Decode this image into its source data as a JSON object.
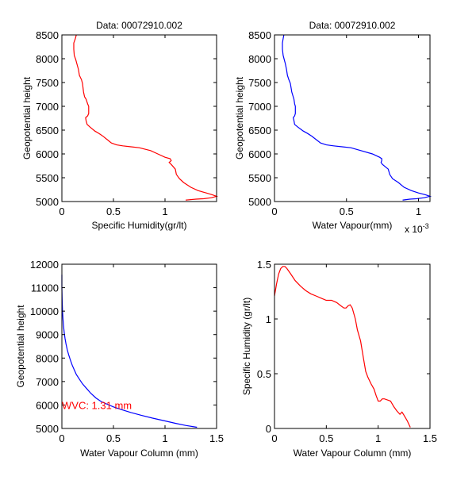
{
  "chart_data": [
    {
      "id": "top-left",
      "type": "line",
      "title": "Data: 00072910.002",
      "xlabel": "Specific Humidity(gr/lt)",
      "ylabel": "Geopotential height",
      "xlim": [
        0,
        1.5
      ],
      "ylim": [
        5000,
        8500
      ],
      "xticks": [
        0,
        0.5,
        1
      ],
      "xtick_labels": [
        "0",
        "0.5",
        "1"
      ],
      "yticks": [
        5000,
        5500,
        6000,
        6500,
        7000,
        7500,
        8000,
        8500
      ],
      "ytick_labels": [
        "5000",
        "5500",
        "6000",
        "6500",
        "7000",
        "7500",
        "8000",
        "8500"
      ],
      "exponent_label": "",
      "grid": false,
      "series": [
        {
          "name": "specific-humidity-profile",
          "color": "#ff0000",
          "x": [
            0.14,
            0.13,
            0.115,
            0.115,
            0.12,
            0.135,
            0.145,
            0.16,
            0.17,
            0.19,
            0.2,
            0.21,
            0.22,
            0.235,
            0.25,
            0.26,
            0.26,
            0.25,
            0.23,
            0.235,
            0.245,
            0.27,
            0.32,
            0.36,
            0.4,
            0.44,
            0.48,
            0.53,
            0.59,
            0.67,
            0.75,
            0.86,
            0.93,
            1.0,
            1.05,
            1.06,
            1.04,
            1.06,
            1.08,
            1.1,
            1.11,
            1.14,
            1.18,
            1.25,
            1.32,
            1.4,
            1.46,
            1.5,
            1.45,
            1.38,
            1.3,
            1.2
          ],
          "y": [
            8500,
            8420,
            8330,
            8200,
            8070,
            7980,
            7900,
            7780,
            7650,
            7560,
            7480,
            7300,
            7200,
            7150,
            7050,
            7000,
            6850,
            6800,
            6760,
            6700,
            6620,
            6570,
            6480,
            6430,
            6370,
            6300,
            6230,
            6190,
            6170,
            6150,
            6130,
            6070,
            6000,
            5930,
            5900,
            5860,
            5820,
            5780,
            5730,
            5680,
            5570,
            5480,
            5400,
            5300,
            5230,
            5180,
            5140,
            5110,
            5080,
            5060,
            5050,
            5030
          ]
        }
      ]
    },
    {
      "id": "top-right",
      "type": "line",
      "title": "Data: 00072910.002",
      "xlabel": "Water Vapour(mm)",
      "ylabel": "Geopotential height",
      "xlim": [
        0,
        1.08
      ],
      "ylim": [
        5000,
        8500
      ],
      "xticks": [
        0,
        0.5,
        1
      ],
      "xtick_labels": [
        "0",
        "0.5",
        "1"
      ],
      "yticks": [
        5000,
        5500,
        6000,
        6500,
        7000,
        7500,
        8000,
        8500
      ],
      "ytick_labels": [
        "5000",
        "5500",
        "6000",
        "6500",
        "7000",
        "7500",
        "8000",
        "8500"
      ],
      "exponent_label": "x 10",
      "exponent_power": "-3",
      "grid": false,
      "series": [
        {
          "name": "water-vapour-profile",
          "color": "#0000ff",
          "x": [
            0.065,
            0.06,
            0.055,
            0.055,
            0.06,
            0.068,
            0.075,
            0.083,
            0.09,
            0.1,
            0.11,
            0.12,
            0.13,
            0.135,
            0.14,
            0.145,
            0.145,
            0.14,
            0.13,
            0.135,
            0.14,
            0.16,
            0.2,
            0.23,
            0.26,
            0.29,
            0.32,
            0.36,
            0.41,
            0.47,
            0.53,
            0.6,
            0.68,
            0.73,
            0.745,
            0.745,
            0.74,
            0.75,
            0.77,
            0.79,
            0.8,
            0.82,
            0.86,
            0.9,
            0.95,
            1.0,
            1.05,
            1.08,
            1.04,
            0.99,
            0.94,
            0.89
          ],
          "y": [
            8500,
            8420,
            8330,
            8200,
            8070,
            7980,
            7900,
            7780,
            7650,
            7560,
            7480,
            7300,
            7200,
            7150,
            7050,
            7000,
            6850,
            6800,
            6760,
            6700,
            6620,
            6570,
            6480,
            6430,
            6370,
            6300,
            6230,
            6190,
            6170,
            6150,
            6130,
            6070,
            6000,
            5930,
            5900,
            5860,
            5820,
            5780,
            5730,
            5680,
            5570,
            5480,
            5400,
            5300,
            5230,
            5180,
            5140,
            5110,
            5080,
            5060,
            5050,
            5030
          ]
        }
      ]
    },
    {
      "id": "bottom-left",
      "type": "line",
      "title": "",
      "xlabel": "Water Vapour Column (mm)",
      "ylabel": "Geopotential height",
      "xlim": [
        0,
        1.5
      ],
      "ylim": [
        5000,
        12000
      ],
      "xticks": [
        0,
        0.5,
        1,
        1.5
      ],
      "xtick_labels": [
        "0",
        "0.5",
        "1",
        "1.5"
      ],
      "yticks": [
        5000,
        6000,
        7000,
        8000,
        9000,
        10000,
        11000,
        12000
      ],
      "ytick_labels": [
        "5000",
        "6000",
        "7000",
        "8000",
        "9000",
        "10000",
        "11000",
        "12000"
      ],
      "exponent_label": "",
      "grid": false,
      "annotation": {
        "text": "WVC: 1.31 mm",
        "x": 0.0,
        "y": 6000,
        "color": "#ff0000"
      },
      "series": [
        {
          "name": "water-vapour-column",
          "color": "#0000ff",
          "x": [
            0.0,
            0.0,
            0.003,
            0.006,
            0.01,
            0.015,
            0.022,
            0.03,
            0.04,
            0.052,
            0.065,
            0.08,
            0.1,
            0.12,
            0.14,
            0.17,
            0.2,
            0.24,
            0.28,
            0.33,
            0.38,
            0.44,
            0.5,
            0.58,
            0.67,
            0.77,
            0.88,
            1.0,
            1.1,
            1.2,
            1.31
          ],
          "y": [
            11550,
            11000,
            10400,
            10000,
            9700,
            9400,
            9100,
            8850,
            8600,
            8350,
            8150,
            7950,
            7700,
            7500,
            7300,
            7100,
            6900,
            6700,
            6500,
            6300,
            6150,
            6030,
            5920,
            5800,
            5680,
            5560,
            5440,
            5320,
            5220,
            5130,
            5050
          ]
        }
      ]
    },
    {
      "id": "bottom-right",
      "type": "line",
      "title": "",
      "xlabel": "Water Vapour Column (mm)",
      "ylabel": "Specific Humidity (gr/lt)",
      "xlim": [
        0,
        1.5
      ],
      "ylim": [
        0,
        1.5
      ],
      "xticks": [
        0,
        0.5,
        1,
        1.5
      ],
      "xtick_labels": [
        "0",
        "0.5",
        "1",
        "1.5"
      ],
      "yticks": [
        0,
        0.5,
        1,
        1.5
      ],
      "ytick_labels": [
        "0",
        "0.5",
        "1",
        "1.5"
      ],
      "exponent_label": "",
      "grid": false,
      "series": [
        {
          "name": "humidity-vs-column",
          "color": "#ff0000",
          "x": [
            0.0,
            0.02,
            0.04,
            0.06,
            0.08,
            0.1,
            0.12,
            0.15,
            0.2,
            0.25,
            0.3,
            0.35,
            0.4,
            0.45,
            0.5,
            0.55,
            0.6,
            0.64,
            0.67,
            0.69,
            0.71,
            0.73,
            0.75,
            0.78,
            0.8,
            0.83,
            0.86,
            0.88,
            0.9,
            0.93,
            0.96,
            0.98,
            1.0,
            1.02,
            1.04,
            1.06,
            1.09,
            1.12,
            1.15,
            1.18,
            1.21,
            1.23,
            1.25,
            1.28,
            1.31
          ],
          "y": [
            1.21,
            1.32,
            1.41,
            1.46,
            1.48,
            1.48,
            1.46,
            1.42,
            1.35,
            1.3,
            1.26,
            1.23,
            1.21,
            1.19,
            1.17,
            1.17,
            1.15,
            1.12,
            1.1,
            1.1,
            1.12,
            1.13,
            1.1,
            1.0,
            0.9,
            0.8,
            0.63,
            0.52,
            0.47,
            0.41,
            0.36,
            0.3,
            0.25,
            0.25,
            0.27,
            0.27,
            0.26,
            0.25,
            0.2,
            0.16,
            0.13,
            0.15,
            0.12,
            0.07,
            0.01
          ]
        }
      ]
    }
  ]
}
